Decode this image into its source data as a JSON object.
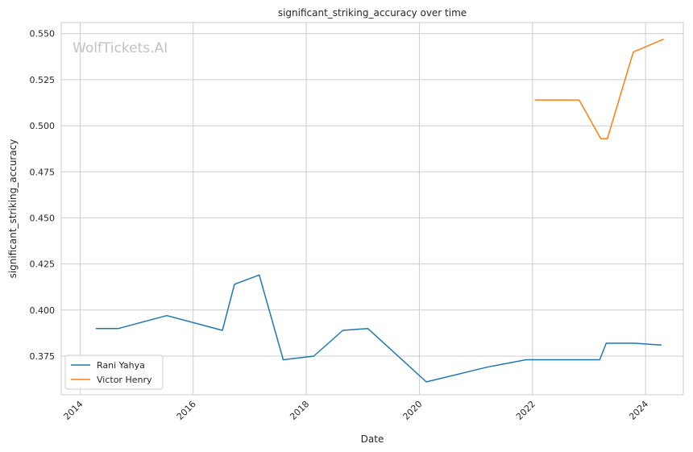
{
  "chart_data": {
    "type": "line",
    "title": "significant_striking_accuracy over time",
    "xlabel": "Date",
    "ylabel": "significant_striking_accuracy",
    "watermark": "WolfTickets.AI",
    "x_axis_type": "date",
    "xlim": [
      "2013-09-01",
      "2024-09-01"
    ],
    "ylim": [
      0.354,
      0.556
    ],
    "x_ticks": [
      "2014",
      "2016",
      "2018",
      "2020",
      "2022",
      "2024"
    ],
    "y_ticks": [
      "0.375",
      "0.400",
      "0.425",
      "0.450",
      "0.475",
      "0.500",
      "0.525",
      "0.550"
    ],
    "grid": true,
    "legend_position": "lower-left",
    "series": [
      {
        "name": "Rani Yahya",
        "color": "#1f77b4",
        "points": [
          {
            "x": "2014-04-12",
            "y": 0.39
          },
          {
            "x": "2014-09-05",
            "y": 0.39
          },
          {
            "x": "2015-07-15",
            "y": 0.397
          },
          {
            "x": "2016-07-08",
            "y": 0.389
          },
          {
            "x": "2016-09-24",
            "y": 0.414
          },
          {
            "x": "2017-03-03",
            "y": 0.419
          },
          {
            "x": "2017-08-05",
            "y": 0.373
          },
          {
            "x": "2018-02-18",
            "y": 0.375
          },
          {
            "x": "2018-08-25",
            "y": 0.389
          },
          {
            "x": "2019-02-02",
            "y": 0.39
          },
          {
            "x": "2020-02-15",
            "y": 0.361
          },
          {
            "x": "2021-03-13",
            "y": 0.369
          },
          {
            "x": "2021-11-20",
            "y": 0.373
          },
          {
            "x": "2023-03-11",
            "y": 0.373
          },
          {
            "x": "2023-04-22",
            "y": 0.382
          },
          {
            "x": "2023-10-21",
            "y": 0.382
          },
          {
            "x": "2024-04-13",
            "y": 0.381
          }
        ]
      },
      {
        "name": "Victor Henry",
        "color": "#ff7f0e",
        "points": [
          {
            "x": "2022-01-15",
            "y": 0.514
          },
          {
            "x": "2022-10-29",
            "y": 0.514
          },
          {
            "x": "2023-03-18",
            "y": 0.493
          },
          {
            "x": "2023-04-29",
            "y": 0.493
          },
          {
            "x": "2023-10-14",
            "y": 0.54
          },
          {
            "x": "2024-04-27",
            "y": 0.547
          }
        ]
      }
    ]
  }
}
